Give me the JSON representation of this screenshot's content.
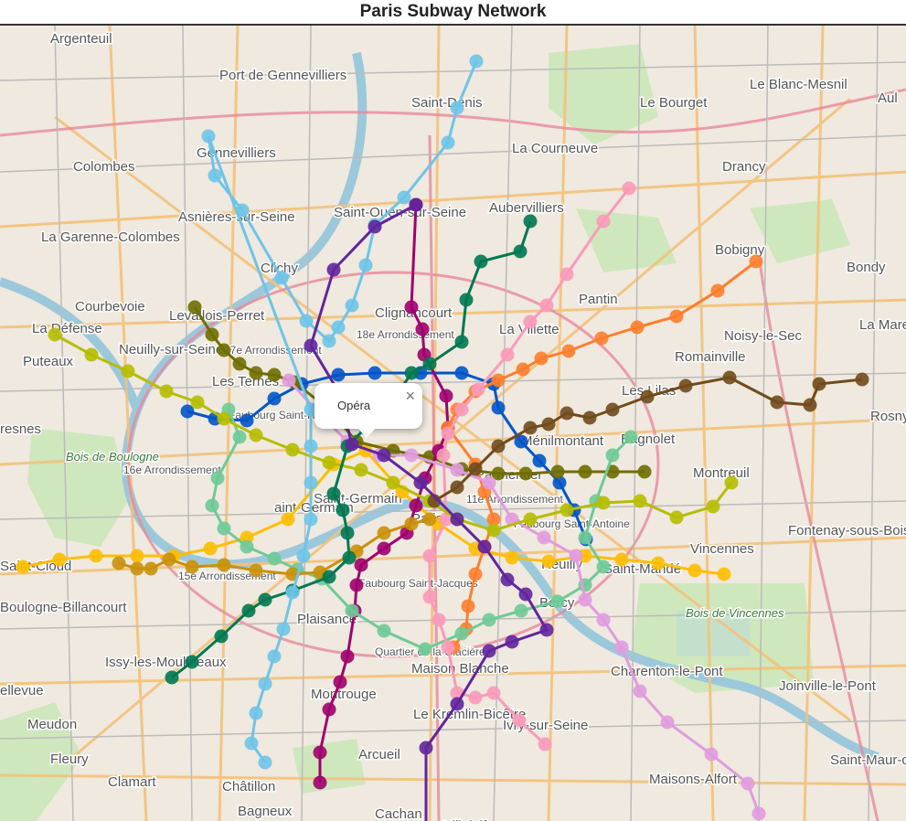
{
  "title": "Paris Subway Network",
  "popup": {
    "station": "Opéra",
    "close_glyph": "×"
  },
  "base_map_labels": [
    "Argenteuil",
    "Port de Gennevilliers",
    "Saint-Denis",
    "Le Bourget",
    "Le Blanc-Mesnil",
    "Aul",
    "Colombes",
    "Gennevilliers",
    "La Courneuve",
    "Drancy",
    "Aubervilliers",
    "Saint-Ouen-sur-Seine",
    "Asnières-sur-Seine",
    "La Garenne-Colombes",
    "Clichy",
    "Bobigny",
    "Bondy",
    "Courbevoie",
    "Levallois-Perret",
    "Pantin",
    "La Défense",
    "Clignancourt",
    "La Villette",
    "Noisy-le-Sec",
    "La Mare à Veuve",
    "Puteaux",
    "Neuilly-sur-Seine",
    "18e Arrondissement",
    "17e Arrondissement",
    "Romainville",
    "Les Lilas",
    "Les Ternes",
    "Rosny-sous-Bois",
    "Faubourg Saint-Honoré",
    "Ménilmontant",
    "Bagnolet",
    "resnes",
    "Bois de Boulogne",
    "16e Arrondissement",
    "Montreuil",
    "Saint-Germain",
    "Paris",
    "11e Arrondissement",
    "Faubourg Saint-Antoine",
    "Fontenay-sous-Bois",
    "Vincennes",
    "Saint-Mandé",
    "Reuilly",
    "15e Arrondissement",
    "Faubourg Saint-Jacques",
    "Saint-Cloud",
    "Boulogne-Billancourt",
    "Plaisance",
    "Bercy",
    "Bois de Vincennes",
    "Quartier de la Glacière",
    "Issy-les-Moulineaux",
    "Maison Blanche",
    "Charenton-le-Pont",
    "Joinville-le-Pont",
    "Montrouge",
    "Le Kremlin-Bicêtre",
    "Ivry-sur-Seine",
    "Meudon",
    "Fleury",
    "Arcueil",
    "Saint-Maur-des-Fossés",
    "Clamart",
    "Châtillon",
    "Maisons-Alfort",
    "Bagneux",
    "Cachan",
    "Villejuif",
    "ellevue",
    "aint-Germain",
    "Parmentier"
  ],
  "colors": {
    "line1": "#FFBE00",
    "line2": "#0055C8",
    "line3": "#6E6E00",
    "line4": "#A0006E",
    "line5": "#FF7E2E",
    "line6": "#6ECA97",
    "line7": "#FA9ABA",
    "line8": "#E19BDF",
    "line9": "#B6BD00",
    "line10": "#C9910A",
    "line11": "#704B1C",
    "line12": "#007852",
    "line13": "#6EC4E8",
    "line14": "#62259D",
    "water": "#aad3df",
    "park": "#c8e6b4"
  }
}
